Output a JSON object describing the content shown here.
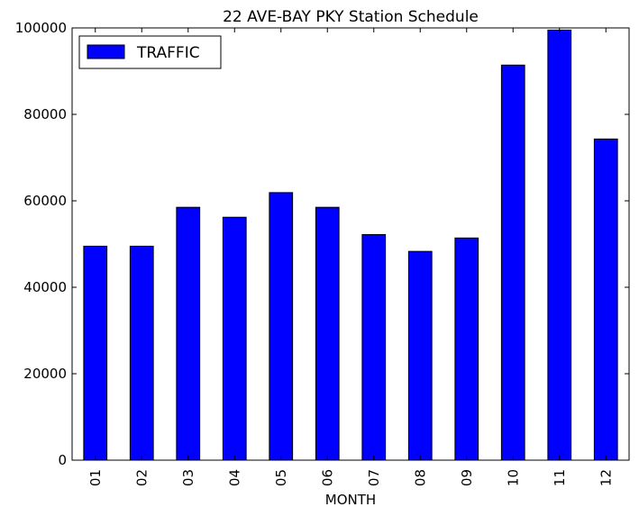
{
  "chart_data": {
    "type": "bar",
    "title": "22 AVE-BAY PKY Station Schedule",
    "xlabel": "MONTH",
    "ylabel": "",
    "categories": [
      "01",
      "02",
      "03",
      "04",
      "05",
      "06",
      "07",
      "08",
      "09",
      "10",
      "11",
      "12"
    ],
    "series": [
      {
        "name": "TRAFFIC",
        "color": "#0000ff",
        "values": [
          49500,
          49500,
          58500,
          56200,
          61900,
          58500,
          52200,
          48300,
          51400,
          91400,
          99500,
          74300
        ]
      }
    ],
    "ylim": [
      0,
      100000
    ],
    "yticks": [
      "0",
      "20000",
      "40000",
      "60000",
      "80000",
      "100000"
    ],
    "grid": false,
    "legend_position": "top-left"
  }
}
